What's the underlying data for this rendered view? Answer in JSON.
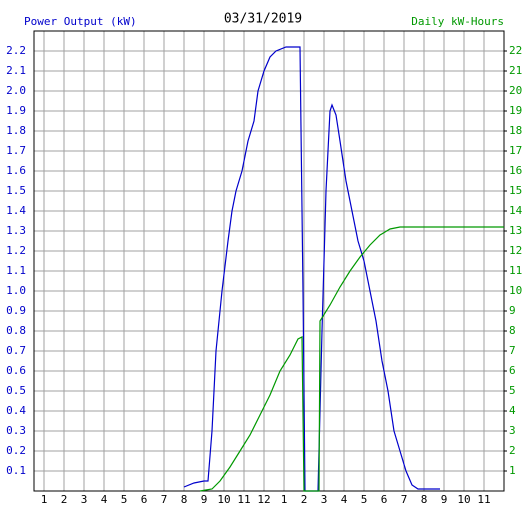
{
  "chart_data": {
    "type": "line",
    "title": "03/31/2019",
    "ylabel": "Power Output (kW)",
    "y2label": "Daily kW-Hours",
    "xlim": [
      0.5,
      24
    ],
    "xticks": [
      1,
      2,
      3,
      4,
      5,
      6,
      7,
      8,
      9,
      10,
      11,
      12,
      {
        "value": 13,
        "label": "1"
      },
      {
        "value": 14,
        "label": "2"
      },
      {
        "value": 15,
        "label": "3"
      },
      {
        "value": 16,
        "label": "4"
      },
      {
        "value": 17,
        "label": "5"
      },
      {
        "value": 18,
        "label": "6"
      },
      {
        "value": 19,
        "label": "7"
      },
      {
        "value": 20,
        "label": "8"
      },
      {
        "value": 21,
        "label": "9"
      },
      {
        "value": 22,
        "label": "10"
      },
      {
        "value": 23,
        "label": "11"
      }
    ],
    "ylim": [
      0,
      2.3
    ],
    "yticks": [
      0.1,
      0.2,
      0.3,
      0.4,
      0.5,
      0.6,
      0.7,
      0.8,
      0.9,
      {
        "value": 1,
        "label": "1.0"
      },
      1.1,
      1.2,
      1.3,
      1.4,
      1.5,
      1.6,
      1.7,
      1.8,
      1.9,
      {
        "value": 2,
        "label": "2.0"
      },
      2.1,
      2.2
    ],
    "y2lim": [
      0,
      23
    ],
    "y2ticks": [
      1,
      2,
      3,
      4,
      5,
      6,
      7,
      8,
      9,
      10,
      11,
      12,
      13,
      14,
      15,
      16,
      17,
      18,
      19,
      20,
      21,
      22
    ],
    "grid": true,
    "series": [
      {
        "name": "Power Output (kW)",
        "color": "#0000cc",
        "x": [
          8.0,
          8.5,
          9.0,
          9.2,
          9.4,
          9.6,
          9.9,
          10.2,
          10.4,
          10.6,
          10.9,
          11.2,
          11.5,
          11.7,
          12.0,
          12.3,
          12.6,
          13.1,
          13.8,
          13.95,
          14.05,
          14.7,
          14.9,
          15.1,
          15.3,
          15.4,
          15.6,
          15.8,
          16.1,
          16.4,
          16.7,
          17.0,
          17.3,
          17.6,
          17.9,
          18.2,
          18.5,
          18.8,
          19.1,
          19.4,
          19.7,
          20.8
        ],
        "values": [
          0.02,
          0.04,
          0.05,
          0.05,
          0.3,
          0.7,
          1.0,
          1.25,
          1.4,
          1.5,
          1.6,
          1.75,
          1.85,
          2.0,
          2.1,
          2.17,
          2.2,
          2.22,
          2.22,
          1.0,
          0,
          0,
          0.8,
          1.5,
          1.9,
          1.93,
          1.88,
          1.75,
          1.55,
          1.4,
          1.25,
          1.15,
          1.0,
          0.85,
          0.65,
          0.5,
          0.3,
          0.2,
          0.1,
          0.03,
          0.01,
          0.01
        ]
      },
      {
        "name": "Daily kW-Hours",
        "color": "#009900",
        "axis": "y2",
        "x": [
          8.8,
          9.4,
          9.8,
          10.3,
          10.8,
          11.3,
          11.8,
          12.3,
          12.8,
          13.3,
          13.7,
          13.9,
          14.0,
          14.75,
          14.8,
          15.3,
          15.8,
          16.3,
          16.8,
          17.3,
          17.8,
          18.3,
          18.8,
          20.0,
          24.0
        ],
        "values": [
          0,
          0.1,
          0.5,
          1.2,
          2.0,
          2.8,
          3.8,
          4.8,
          6.0,
          6.8,
          7.6,
          7.7,
          0,
          0,
          8.5,
          9.3,
          10.2,
          11.0,
          11.7,
          12.3,
          12.8,
          13.1,
          13.2,
          13.2,
          13.2
        ]
      }
    ]
  }
}
